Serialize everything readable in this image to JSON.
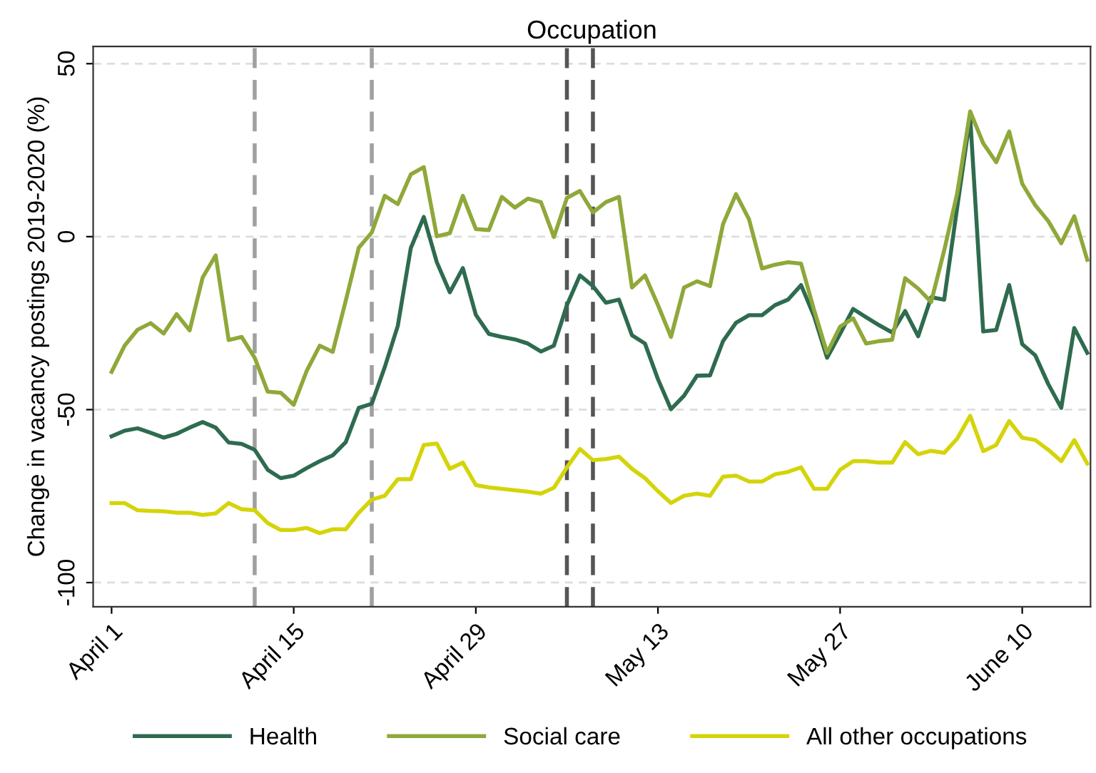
{
  "chart_data": {
    "type": "line",
    "title": "Occupation",
    "ylabel": "Change in vacancy postings 2019-2020 (%)",
    "x": [
      "2020-04-01",
      "2020-04-02",
      "2020-04-03",
      "2020-04-04",
      "2020-04-05",
      "2020-04-06",
      "2020-04-07",
      "2020-04-08",
      "2020-04-09",
      "2020-04-10",
      "2020-04-11",
      "2020-04-12",
      "2020-04-13",
      "2020-04-14",
      "2020-04-15",
      "2020-04-16",
      "2020-04-17",
      "2020-04-18",
      "2020-04-19",
      "2020-04-20",
      "2020-04-21",
      "2020-04-22",
      "2020-04-23",
      "2020-04-24",
      "2020-04-25",
      "2020-04-26",
      "2020-04-27",
      "2020-04-28",
      "2020-04-29",
      "2020-04-30",
      "2020-05-01",
      "2020-05-02",
      "2020-05-03",
      "2020-05-04",
      "2020-05-05",
      "2020-05-06",
      "2020-05-07",
      "2020-05-08",
      "2020-05-09",
      "2020-05-10",
      "2020-05-11",
      "2020-05-12",
      "2020-05-13",
      "2020-05-14",
      "2020-05-15",
      "2020-05-16",
      "2020-05-17",
      "2020-05-18",
      "2020-05-19",
      "2020-05-20",
      "2020-05-21",
      "2020-05-22",
      "2020-05-23",
      "2020-05-24",
      "2020-05-25",
      "2020-05-26",
      "2020-05-27",
      "2020-05-28",
      "2020-05-29",
      "2020-05-30",
      "2020-05-31",
      "2020-06-01",
      "2020-06-02",
      "2020-06-03",
      "2020-06-04",
      "2020-06-05",
      "2020-06-06",
      "2020-06-07",
      "2020-06-08",
      "2020-06-09",
      "2020-06-10",
      "2020-06-11",
      "2020-06-12",
      "2020-06-13",
      "2020-06-14",
      "2020-06-15"
    ],
    "series": [
      {
        "name": "Health",
        "color": "#2e6b4f",
        "values": [
          -57.7,
          -56.1,
          -55.4,
          -56.7,
          -58.1,
          -57,
          -55.2,
          -53.6,
          -55.2,
          -59.5,
          -59.9,
          -61.6,
          -67.4,
          -69.8,
          -69.1,
          -66.9,
          -64.9,
          -63.2,
          -59.4,
          -49.5,
          -48.3,
          -37.7,
          -25.8,
          -3.3,
          5.7,
          -7.4,
          -16.1,
          -9.1,
          -22.6,
          -28.1,
          -29,
          -29.7,
          -30.9,
          -33.2,
          -31.5,
          -19.8,
          -11.2,
          -14.3,
          -19.1,
          -18.2,
          -28.5,
          -30.9,
          -41.2,
          -49.9,
          -46,
          -40.2,
          -40.1,
          -30.2,
          -24.9,
          -22.7,
          -22.7,
          -19.8,
          -18.2,
          -14,
          -23,
          -35,
          -28.1,
          -20.9,
          -23.3,
          -25.6,
          -27.7,
          -21.5,
          -28.8,
          -17.5,
          -18.2,
          8.4,
          34.6,
          -27.4,
          -27,
          -14,
          -31.1,
          -34.3,
          -42.6,
          -49.5,
          -26.4,
          -33.6
        ]
      },
      {
        "name": "Social care",
        "color": "#8fa83a",
        "values": [
          -39.1,
          -31.5,
          -26.9,
          -25,
          -28,
          -22.4,
          -27.1,
          -11.8,
          -5.4,
          -29.9,
          -29,
          -35,
          -44.8,
          -45.1,
          -48.6,
          -38.8,
          -31.5,
          -33.3,
          -18.5,
          -3.2,
          1.2,
          11.8,
          9.4,
          18,
          20.1,
          0.1,
          1,
          11.8,
          2.2,
          1.9,
          11.5,
          8.4,
          11,
          10,
          -0.1,
          11.2,
          13.2,
          7,
          10,
          11.5,
          -14.7,
          -11.2,
          -19.8,
          -29,
          -14.7,
          -12.9,
          -14.3,
          3.6,
          12.3,
          5,
          -9.2,
          -8.1,
          -7.4,
          -7.8,
          -21.2,
          -33.6,
          -26,
          -23.6,
          -30.9,
          -30.2,
          -29.8,
          -12,
          -15,
          -18.9,
          -4,
          12.5,
          36.2,
          27,
          21.5,
          30.4,
          15.3,
          9.1,
          4.5,
          -1.9,
          5.9,
          -6.7
        ]
      },
      {
        "name": "All other occupations",
        "color": "#d4d40a",
        "values": [
          -77,
          -77,
          -79.1,
          -79.3,
          -79.4,
          -79.8,
          -79.8,
          -80.4,
          -80,
          -77,
          -78.8,
          -79.1,
          -82.8,
          -84.8,
          -84.8,
          -84.2,
          -85.7,
          -84.6,
          -84.6,
          -79.8,
          -76,
          -74.9,
          -70.1,
          -70.1,
          -60.2,
          -59.8,
          -67.1,
          -65.3,
          -71.8,
          -72.5,
          -72.9,
          -73.3,
          -73.7,
          -74.3,
          -72.6,
          -66.7,
          -61.4,
          -64.6,
          -64.3,
          -63.6,
          -67.1,
          -69.8,
          -73.6,
          -77,
          -74.9,
          -74.3,
          -74.9,
          -69.4,
          -69.1,
          -70.8,
          -70.8,
          -68.7,
          -68,
          -66.7,
          -72.9,
          -72.9,
          -67.4,
          -64.9,
          -64.9,
          -65.3,
          -65.3,
          -59.4,
          -62.9,
          -61.9,
          -62.5,
          -58.4,
          -51.8,
          -62,
          -60.2,
          -53.3,
          -58.1,
          -58.8,
          -61.6,
          -64.9,
          -58.8,
          -65.6
        ]
      }
    ],
    "xlim": [
      "2020-03-30T14:00",
      "2020-06-15T06:00"
    ],
    "xticks": [
      {
        "value": "2020-04-01",
        "label": "April 1"
      },
      {
        "value": "2020-04-15",
        "label": "April 15"
      },
      {
        "value": "2020-04-29",
        "label": "April 29"
      },
      {
        "value": "2020-05-13",
        "label": "May 13"
      },
      {
        "value": "2020-05-27",
        "label": "May 27"
      },
      {
        "value": "2020-06-10",
        "label": "June 10"
      }
    ],
    "ylim": [
      -107,
      55
    ],
    "yticks": [
      50,
      0,
      -50,
      -100
    ],
    "ref_lines": [
      {
        "axis": "x",
        "value": "2020-04-12",
        "label": null,
        "color": "#a0a0a0",
        "line_style": "dashed"
      },
      {
        "axis": "x",
        "value": "2020-04-21",
        "label": null,
        "color": "#a0a0a0",
        "line_style": "dashed"
      },
      {
        "axis": "x",
        "value": "2020-05-06",
        "label": null,
        "color": "#555555",
        "line_style": "dashed"
      },
      {
        "axis": "x",
        "value": "2020-05-08",
        "label": null,
        "color": "#555555",
        "line_style": "dashed"
      }
    ],
    "grid": "y",
    "legend": "bottom",
    "marker": "none",
    "line_style": "solid"
  }
}
